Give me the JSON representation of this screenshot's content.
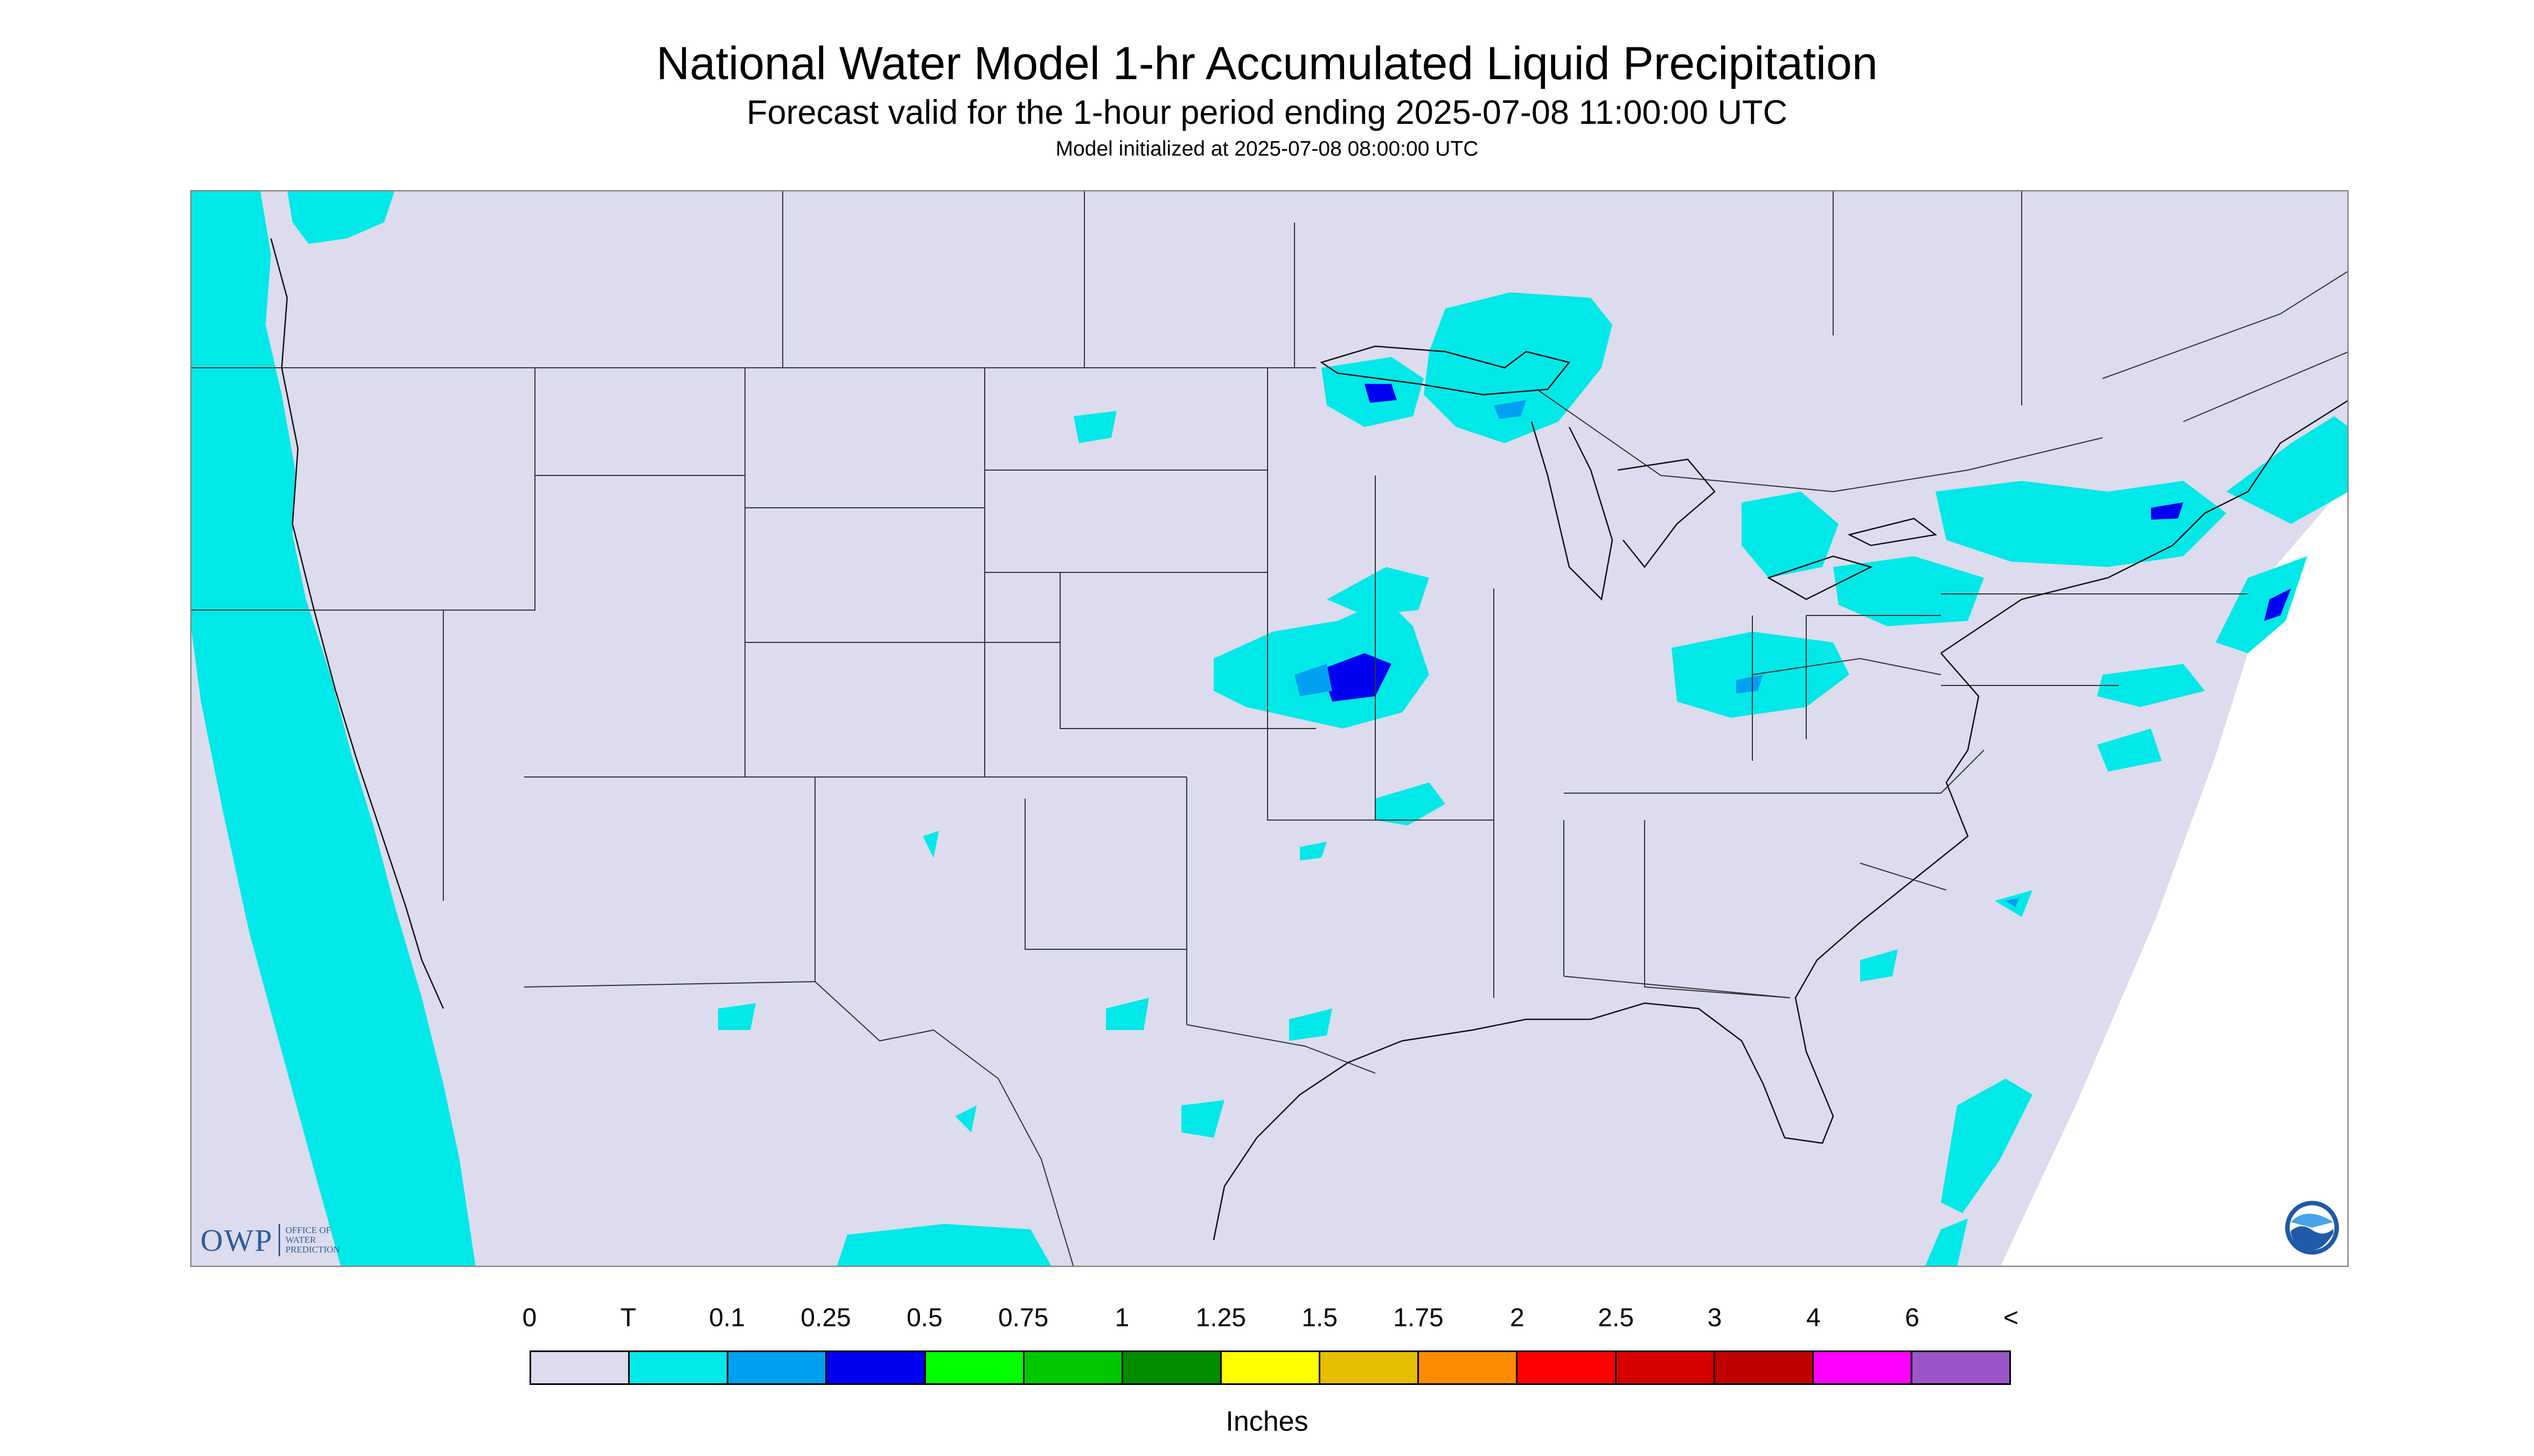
{
  "title": "National Water Model 1-hr Accumulated Liquid Precipitation",
  "subtitle": "Forecast valid for the 1-hour period ending 2025-07-08 11:00:00 UTC",
  "init_text": "Model initialized at 2025-07-08 08:00:00 UTC",
  "legend": {
    "ticks": [
      "0",
      "T",
      "0.1",
      "0.25",
      "0.5",
      "0.75",
      "1",
      "1.25",
      "1.5",
      "1.75",
      "2",
      "2.5",
      "3",
      "4",
      "6",
      "<"
    ],
    "colors": [
      "#dcdcee",
      "#00e8e8",
      "#00a0f0",
      "#0000f0",
      "#00ff00",
      "#00c800",
      "#008c00",
      "#ffff00",
      "#e6be00",
      "#ff8c00",
      "#ff0000",
      "#d70000",
      "#c00000",
      "#ff00ff",
      "#9b55c9"
    ],
    "units": "Inches"
  },
  "map": {
    "background_color": "#dcdcee",
    "precip_trace_color": "#00e8e8",
    "precip_light_color": "#00a0f0",
    "precip_heavy_color": "#0000f0"
  },
  "logos": {
    "owp_mark": "OWP",
    "owp_text_lines": [
      "Office of",
      "Water",
      "Prediction"
    ],
    "noaa_text": "NOAA"
  }
}
